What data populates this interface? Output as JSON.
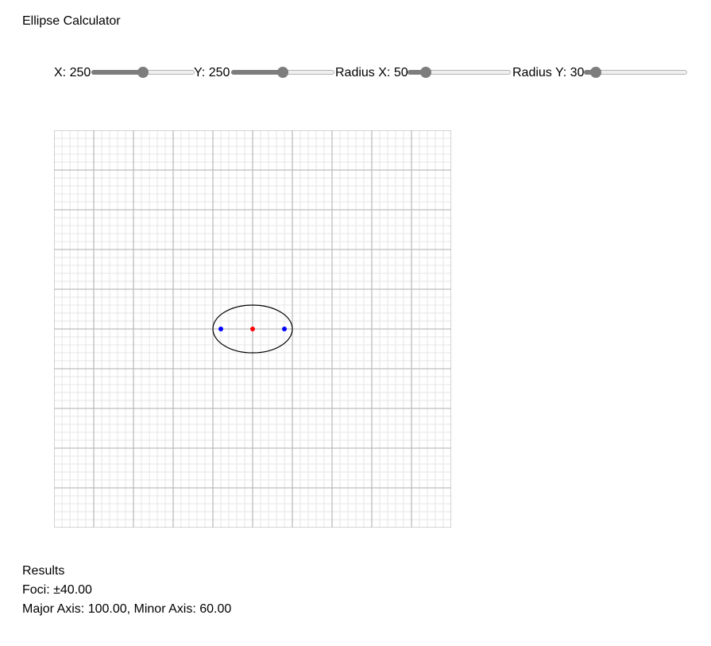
{
  "title": "Ellipse Calculator",
  "controls": [
    {
      "label": "X: ",
      "value": "250",
      "min": 0,
      "max": 500
    },
    {
      "label": "Y: ",
      "value": "250",
      "min": 0,
      "max": 500
    },
    {
      "label": "Radius X: ",
      "value": "50",
      "min": 10,
      "max": 300
    },
    {
      "label": "Radius Y: ",
      "value": "30",
      "min": 10,
      "max": 300
    }
  ],
  "ellipse": {
    "cx": 250,
    "cy": 250,
    "rx": 50,
    "ry": 30,
    "foci_offset": 40
  },
  "colors": {
    "center": "#ff0000",
    "foci": "#0000ff",
    "ellipse": "#000000",
    "grid_major": "#bdbdbd",
    "grid_minor": "#e6e6e6",
    "slider": "#7d7d7d"
  },
  "results": {
    "heading": "Results",
    "foci": "Foci: ±40.00",
    "axes": "Major Axis: 100.00, Minor Axis: 60.00"
  }
}
